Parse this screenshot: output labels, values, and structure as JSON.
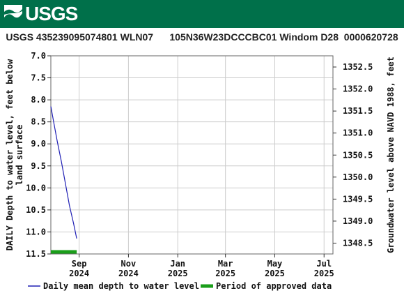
{
  "header": {
    "logo_text": "USGS",
    "title": "USGS 435239095074801 WLN07      105N36W23DCCCBC01 Windom D28  0000620728"
  },
  "chart_data": {
    "type": "line",
    "ylabel_left": [
      "DAILY Depth to water level, feet below",
      "land surface"
    ],
    "ylabel_right": "Groundwater level above NAVD 1988, feet",
    "ylim_left": [
      7.0,
      11.5
    ],
    "yticks_left": [
      "7.0",
      "7.5",
      "8.0",
      "8.5",
      "9.0",
      "9.5",
      "10.0",
      "10.5",
      "11.0",
      "11.5"
    ],
    "ylim_right": [
      1352.754,
      1348.254
    ],
    "yticks_right": [
      "1352.5",
      "1352.0",
      "1351.5",
      "1351.0",
      "1350.5",
      "1350.0",
      "1349.5",
      "1349.0",
      "1348.5"
    ],
    "yticks_right_values": [
      1352.5,
      1352.0,
      1351.5,
      1351.0,
      1350.5,
      1350.0,
      1349.5,
      1349.0,
      1348.5
    ],
    "x_range": [
      "2024-07-28",
      "2025-07-12"
    ],
    "xticks": [
      {
        "date": "2024-09-01",
        "line1": "Sep",
        "line2": "2024"
      },
      {
        "date": "2024-11-01",
        "line1": "Nov",
        "line2": "2024"
      },
      {
        "date": "2025-01-01",
        "line1": "Jan",
        "line2": "2025"
      },
      {
        "date": "2025-03-01",
        "line1": "Mar",
        "line2": "2025"
      },
      {
        "date": "2025-05-01",
        "line1": "May",
        "line2": "2025"
      },
      {
        "date": "2025-07-01",
        "line1": "Jul",
        "line2": "2025"
      }
    ],
    "series": [
      {
        "name": "Daily mean depth to water level",
        "color": "#1f1fb4",
        "x": [
          "2024-07-28",
          "2024-08-01",
          "2024-08-05",
          "2024-08-10",
          "2024-08-15",
          "2024-08-20",
          "2024-08-25",
          "2024-08-29"
        ],
        "y": [
          8.15,
          8.55,
          8.95,
          9.4,
          9.9,
          10.4,
          10.8,
          11.15
        ]
      }
    ],
    "approved_period": {
      "name": "Period of approved data",
      "color": "#1a9e1a",
      "start": "2024-07-28",
      "end": "2024-08-29"
    },
    "grid": true
  }
}
